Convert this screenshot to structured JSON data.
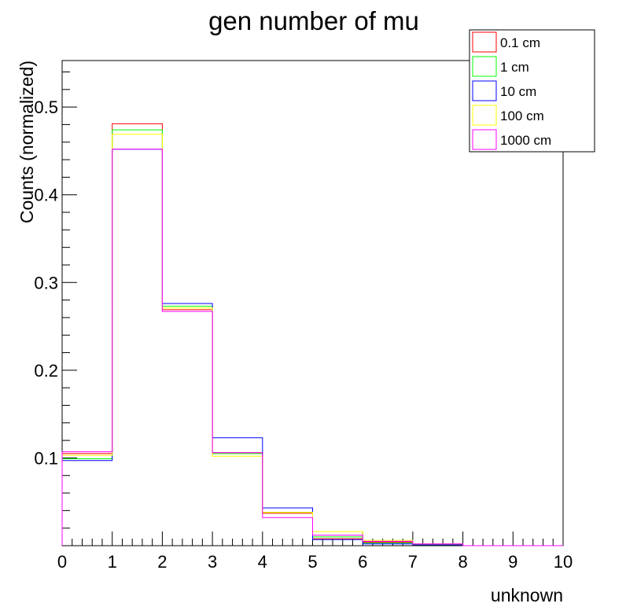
{
  "chart_data": {
    "type": "histogram",
    "title": "gen number of mu",
    "xlabel": "unknown",
    "ylabel": "Counts (normalized)",
    "xlim": [
      0,
      10
    ],
    "ylim": [
      0,
      0.553
    ],
    "x_ticks": [
      "0",
      "1",
      "2",
      "3",
      "4",
      "5",
      "6",
      "7",
      "8",
      "9",
      "10"
    ],
    "y_ticks": [
      "0.1",
      "0.2",
      "0.3",
      "0.4",
      "0.5"
    ],
    "bin_edges": [
      0,
      1,
      2,
      3,
      4,
      5,
      6,
      7,
      8,
      9,
      10
    ],
    "legend_position": "top-right",
    "grid": false,
    "series": [
      {
        "name": "0.1 cm",
        "color": "#ff0000",
        "values": [
          0.105,
          0.481,
          0.269,
          0.106,
          0.037,
          0.008,
          0.004,
          0.001,
          0.0,
          0.0
        ]
      },
      {
        "name": "1 cm",
        "color": "#00ff00",
        "values": [
          0.099,
          0.474,
          0.273,
          0.105,
          0.038,
          0.01,
          0.003,
          0.001,
          0.0,
          0.0
        ]
      },
      {
        "name": "10 cm",
        "color": "#0000ff",
        "values": [
          0.097,
          0.452,
          0.276,
          0.123,
          0.043,
          0.007,
          0.002,
          0.001,
          0.0,
          0.0
        ]
      },
      {
        "name": "100 cm",
        "color": "#ffff00",
        "values": [
          0.103,
          0.469,
          0.271,
          0.102,
          0.038,
          0.016,
          0.006,
          0.002,
          0.0,
          0.0
        ]
      },
      {
        "name": "1000 cm",
        "color": "#ff00ff",
        "values": [
          0.107,
          0.452,
          0.267,
          0.106,
          0.032,
          0.012,
          0.005,
          0.002,
          0.0,
          0.0
        ]
      }
    ]
  }
}
